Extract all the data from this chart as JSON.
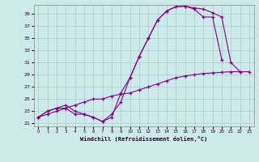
{
  "bg_color": "#cceaea",
  "grid_color": "#aacccc",
  "line_color": "#880088",
  "xlabel": "Windchill (Refroidissement éolien,°C)",
  "x_ticks": [
    0,
    1,
    2,
    3,
    4,
    5,
    6,
    7,
    8,
    9,
    10,
    11,
    12,
    13,
    14,
    15,
    16,
    17,
    18,
    19,
    20,
    21,
    22,
    23
  ],
  "y_ticks": [
    21,
    23,
    25,
    27,
    29,
    31,
    33,
    35,
    37,
    39
  ],
  "ylim": [
    20.5,
    40.5
  ],
  "xlim": [
    -0.5,
    23.5
  ],
  "curve1_x": [
    0,
    1,
    2,
    3,
    4,
    5,
    6,
    7,
    8,
    9,
    10,
    11,
    12,
    13,
    14,
    15,
    16,
    17,
    18,
    19,
    20,
    21,
    22
  ],
  "curve1_y": [
    22.0,
    23.0,
    23.5,
    23.5,
    22.5,
    22.5,
    22.0,
    21.3,
    22.5,
    24.5,
    28.5,
    32.0,
    35.0,
    38.0,
    39.5,
    40.2,
    40.3,
    40.0,
    39.8,
    39.2,
    38.5,
    31.0,
    29.5
  ],
  "curve2_x": [
    0,
    1,
    2,
    3,
    4,
    5,
    6,
    7,
    8,
    9,
    10,
    11,
    12,
    13,
    14,
    15,
    16,
    17,
    18,
    19,
    20
  ],
  "curve2_y": [
    22.0,
    23.0,
    23.5,
    24.0,
    23.0,
    22.5,
    22.0,
    21.3,
    22.0,
    26.0,
    28.5,
    32.0,
    35.0,
    38.0,
    39.5,
    40.2,
    40.3,
    39.8,
    38.5,
    38.5,
    31.5
  ],
  "curve3_x": [
    0,
    1,
    2,
    3,
    4,
    5,
    6,
    7,
    8,
    9,
    10,
    11,
    12,
    13,
    14,
    15,
    16,
    17,
    18,
    19,
    20,
    21,
    22,
    23
  ],
  "curve3_y": [
    22.0,
    22.5,
    23.0,
    23.5,
    24.0,
    24.5,
    25.0,
    25.0,
    25.5,
    25.8,
    26.0,
    26.5,
    27.0,
    27.5,
    28.0,
    28.5,
    28.8,
    29.0,
    29.2,
    29.3,
    29.4,
    29.5,
    29.5,
    29.5
  ]
}
